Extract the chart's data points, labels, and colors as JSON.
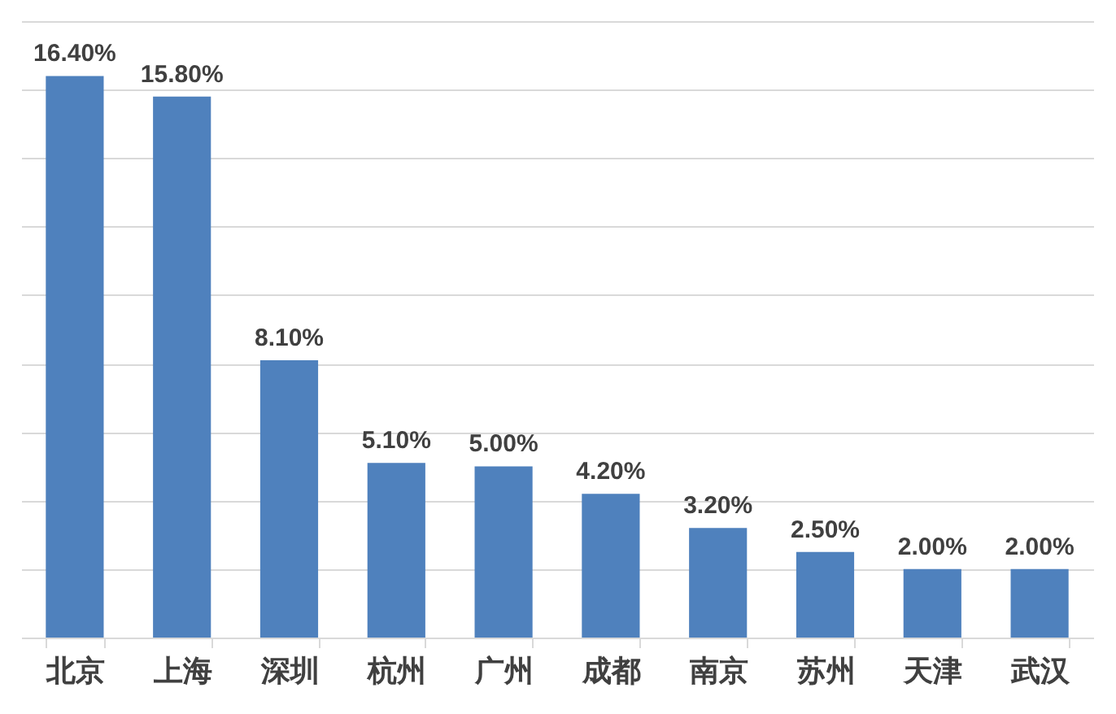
{
  "chart_data": {
    "type": "bar",
    "categories": [
      "北京",
      "上海",
      "深圳",
      "杭州",
      "广州",
      "成都",
      "南京",
      "苏州",
      "天津",
      "武汉"
    ],
    "values": [
      16.4,
      15.8,
      8.1,
      5.1,
      5.0,
      4.2,
      3.2,
      2.5,
      2.0,
      2.0
    ],
    "value_labels": [
      "16.40%",
      "15.80%",
      "8.10%",
      "5.10%",
      "5.00%",
      "4.20%",
      "3.20%",
      "2.50%",
      "2.00%",
      "2.00%"
    ],
    "color": "#4f81bd",
    "grid": "y",
    "tick_labels": "x"
  }
}
